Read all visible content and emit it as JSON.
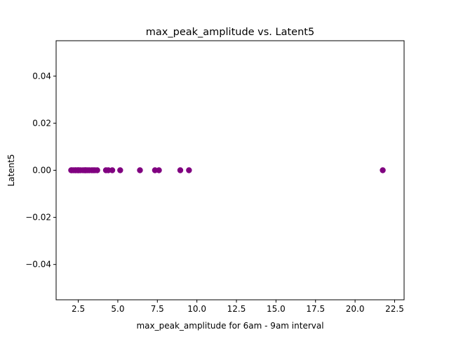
{
  "chart_data": {
    "type": "scatter",
    "title": "max_peak_amplitude vs. Latent5",
    "xlabel": "max_peak_amplitude for 6am - 9am interval",
    "ylabel": "Latent5",
    "xlim": [
      1.1,
      23.1
    ],
    "ylim": [
      -0.055,
      0.055
    ],
    "xticks": [
      2.5,
      5.0,
      7.5,
      10.0,
      12.5,
      15.0,
      17.5,
      20.0,
      22.5
    ],
    "xtick_labels": [
      "2.5",
      "5.0",
      "7.5",
      "10.0",
      "12.5",
      "15.0",
      "17.5",
      "20.0",
      "22.5"
    ],
    "yticks": [
      -0.04,
      -0.02,
      0.0,
      0.02,
      0.04
    ],
    "ytick_labels": [
      "−0.04",
      "−0.02",
      "0.00",
      "0.02",
      "0.04"
    ],
    "grid": false,
    "marker_color": "#800080",
    "series": [
      {
        "name": "Latent5",
        "x": [
          2.05,
          2.1,
          2.2,
          2.3,
          2.35,
          2.45,
          2.5,
          2.55,
          2.65,
          2.8,
          2.9,
          2.95,
          3.0,
          3.1,
          3.2,
          3.35,
          3.45,
          3.55,
          3.7,
          4.25,
          4.4,
          4.65,
          5.15,
          6.4,
          7.35,
          7.6,
          8.95,
          9.5,
          21.75
        ],
        "y": [
          0,
          0,
          0,
          0,
          0,
          0,
          0,
          0,
          0,
          0,
          0,
          0,
          0,
          0,
          0,
          0,
          0,
          0,
          0,
          0,
          0,
          0,
          0,
          0,
          0,
          0,
          0,
          0,
          0
        ]
      }
    ]
  }
}
